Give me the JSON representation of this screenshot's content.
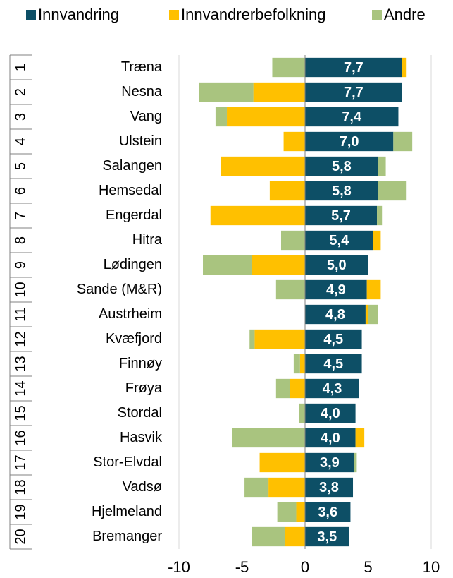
{
  "chart_data": {
    "type": "bar",
    "orientation": "horizontal",
    "stacked": true,
    "ranks": [
      1,
      2,
      3,
      4,
      5,
      6,
      7,
      8,
      9,
      10,
      11,
      12,
      13,
      14,
      15,
      16,
      17,
      18,
      19,
      20
    ],
    "categories": [
      "Træna",
      "Nesna",
      "Vang",
      "Ulstein",
      "Salangen",
      "Hemsedal",
      "Engerdal",
      "Hitra",
      "Lødingen",
      "Sande (M&R)",
      "Austrheim",
      "Kvæfjord",
      "Finnøy",
      "Frøya",
      "Stordal",
      "Hasvik",
      "Stor-Elvdal",
      "Vadsø",
      "Hjelmeland",
      "Bremanger"
    ],
    "series": [
      {
        "name": "Innvandring",
        "color": "#0d4f66",
        "values": [
          7.7,
          7.7,
          7.4,
          7.0,
          5.8,
          5.8,
          5.7,
          5.4,
          5.0,
          4.9,
          4.8,
          4.5,
          4.5,
          4.3,
          4.0,
          4.0,
          3.9,
          3.8,
          3.6,
          3.5
        ],
        "value_labels": [
          "7,7",
          "7,7",
          "7,4",
          "7,0",
          "5,8",
          "5,8",
          "5,7",
          "5,4",
          "5,0",
          "4,9",
          "4,8",
          "4,5",
          "4,5",
          "4,3",
          "4,0",
          "4,0",
          "3,9",
          "3,8",
          "3,6",
          "3,5"
        ]
      },
      {
        "name": "Innvandrerbefolkning",
        "color": "#ffc000",
        "values": [
          0.3,
          -4.1,
          -6.2,
          -1.7,
          -6.7,
          -2.8,
          -7.5,
          0.6,
          -4.2,
          1.1,
          0.2,
          -4.0,
          -0.4,
          -1.2,
          0,
          0.7,
          -3.6,
          -2.9,
          -0.7,
          -1.6
        ]
      },
      {
        "name": "Andre",
        "color": "#a9c47f",
        "values": [
          -2.6,
          -4.3,
          -0.9,
          1.5,
          0.6,
          2.2,
          0.4,
          -1.9,
          -3.9,
          -2.3,
          0.8,
          -0.4,
          -0.5,
          -1.1,
          -0.5,
          -5.8,
          0.2,
          -1.9,
          -1.5,
          -2.6
        ]
      }
    ],
    "xlim": [
      -10,
      10
    ],
    "xticks": [
      -10,
      -5,
      0,
      5,
      10
    ],
    "grid": true
  }
}
